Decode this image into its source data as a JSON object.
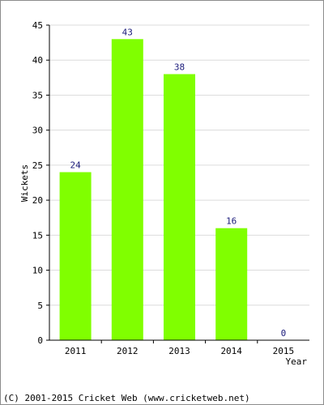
{
  "chart_data": {
    "type": "bar",
    "categories": [
      "2011",
      "2012",
      "2013",
      "2014",
      "2015"
    ],
    "values": [
      24,
      43,
      38,
      16,
      0
    ],
    "data_labels": [
      "24",
      "43",
      "38",
      "16",
      "0"
    ],
    "title": "",
    "xlabel": "Year",
    "ylabel": "Wickets",
    "ylim": [
      0,
      45
    ],
    "yticks": [
      0,
      5,
      10,
      15,
      20,
      25,
      30,
      35,
      40,
      45
    ],
    "grid": true,
    "legend": "none"
  },
  "colors": {
    "bar": "#80ff00",
    "label": "#1a1a7a",
    "grid": "#dcdcdc",
    "axis": "#000000"
  },
  "footer": "(C) 2001-2015 Cricket Web (www.cricketweb.net)"
}
